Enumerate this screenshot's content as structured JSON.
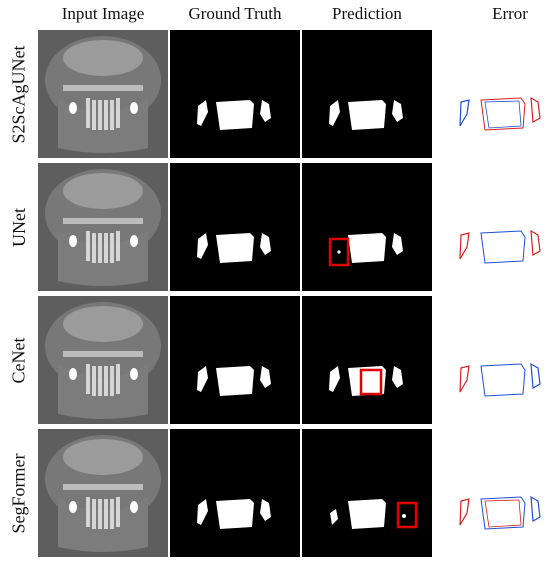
{
  "columns": [
    "Input Image",
    "Ground Truth",
    "Prediction",
    "Error"
  ],
  "rows": [
    {
      "model": "S2ScAgUNet",
      "highlight": null
    },
    {
      "model": "UNet",
      "highlight": "left-tooth"
    },
    {
      "model": "CeNet",
      "highlight": "center-teeth"
    },
    {
      "model": "SegFormer",
      "highlight": "right-tooth"
    }
  ],
  "colors": {
    "highlight_box": "#e00000",
    "error_false_negative": "#d62020",
    "error_false_positive": "#1f4fd6"
  }
}
